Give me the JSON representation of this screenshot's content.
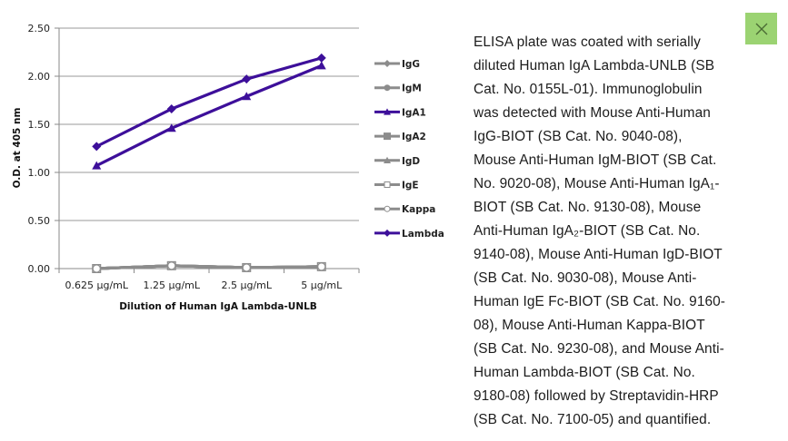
{
  "close_button": {
    "label": "×",
    "icon": "close-icon",
    "bg_color": "#9bd372"
  },
  "caption": {
    "lines": [
      "ELISA plate was coated with serially",
      "diluted Human IgA Lambda-UNLB (SB",
      "Cat. No. 0155L-01). Immunoglobulin",
      "was detected with Mouse Anti-Human",
      "IgG-BIOT (SB Cat. No. 9040-08),",
      "Mouse Anti-Human IgM-BIOT (SB Cat.",
      "No. 9020-08), Mouse Anti-Human IgA₁-",
      "BIOT (SB Cat. No. 9130-08), Mouse",
      "Anti-Human IgA₂-BIOT (SB Cat. No.",
      "9140-08), Mouse Anti-Human IgD-BIOT",
      "(SB Cat. No. 9030-08), Mouse Anti-",
      "Human IgE Fc-BIOT (SB Cat. No. 9160-",
      "08), Mouse Anti-Human Kappa-BIOT",
      "(SB Cat. No. 9230-08), and Mouse Anti-",
      "Human Lambda-BIOT (SB Cat. No.",
      "9180-08) followed by Streptavidin-HRP",
      "(SB Cat. No. 7100-05) and quantified."
    ]
  },
  "chart_data": {
    "type": "line",
    "title": "",
    "xlabel": "Dilution of Human IgA Lambda-UNLB",
    "ylabel": "O.D. at 405 nm",
    "categories": [
      "0.625 µg/mL",
      "1.25 µg/mL",
      "2.5 µg/mL",
      "5 µg/mL"
    ],
    "ylim": [
      0,
      2.5
    ],
    "yticks": [
      "0.00",
      "0.50",
      "1.00",
      "1.50",
      "2.00",
      "2.50"
    ],
    "ytick_values": [
      0,
      0.5,
      1.0,
      1.5,
      2.0,
      2.5
    ],
    "grid": true,
    "legend_position": "right",
    "series": [
      {
        "name": "IgG",
        "color": "#8c8c8c",
        "marker": "diamond",
        "values": [
          0.0,
          0.03,
          0.01,
          0.02
        ]
      },
      {
        "name": "IgM",
        "color": "#8c8c8c",
        "marker": "circle",
        "values": [
          0.0,
          0.03,
          0.01,
          0.02
        ]
      },
      {
        "name": "IgA1",
        "color": "#3d0f9a",
        "marker": "triangle",
        "values": [
          1.07,
          1.46,
          1.79,
          2.11
        ]
      },
      {
        "name": "IgA2",
        "color": "#8c8c8c",
        "marker": "square",
        "values": [
          0.0,
          0.03,
          0.01,
          0.02
        ]
      },
      {
        "name": "IgD",
        "color": "#8c8c8c",
        "marker": "triangle",
        "values": [
          0.0,
          0.03,
          0.01,
          0.02
        ]
      },
      {
        "name": "IgE",
        "color": "#8c8c8c",
        "marker": "open-square",
        "values": [
          0.0,
          0.03,
          0.01,
          0.02
        ]
      },
      {
        "name": "Kappa",
        "color": "#8c8c8c",
        "marker": "open-circle",
        "values": [
          0.0,
          0.03,
          0.01,
          0.02
        ]
      },
      {
        "name": "Lambda",
        "color": "#3d0f9a",
        "marker": "diamond",
        "values": [
          1.27,
          1.66,
          1.97,
          2.19
        ]
      }
    ]
  }
}
